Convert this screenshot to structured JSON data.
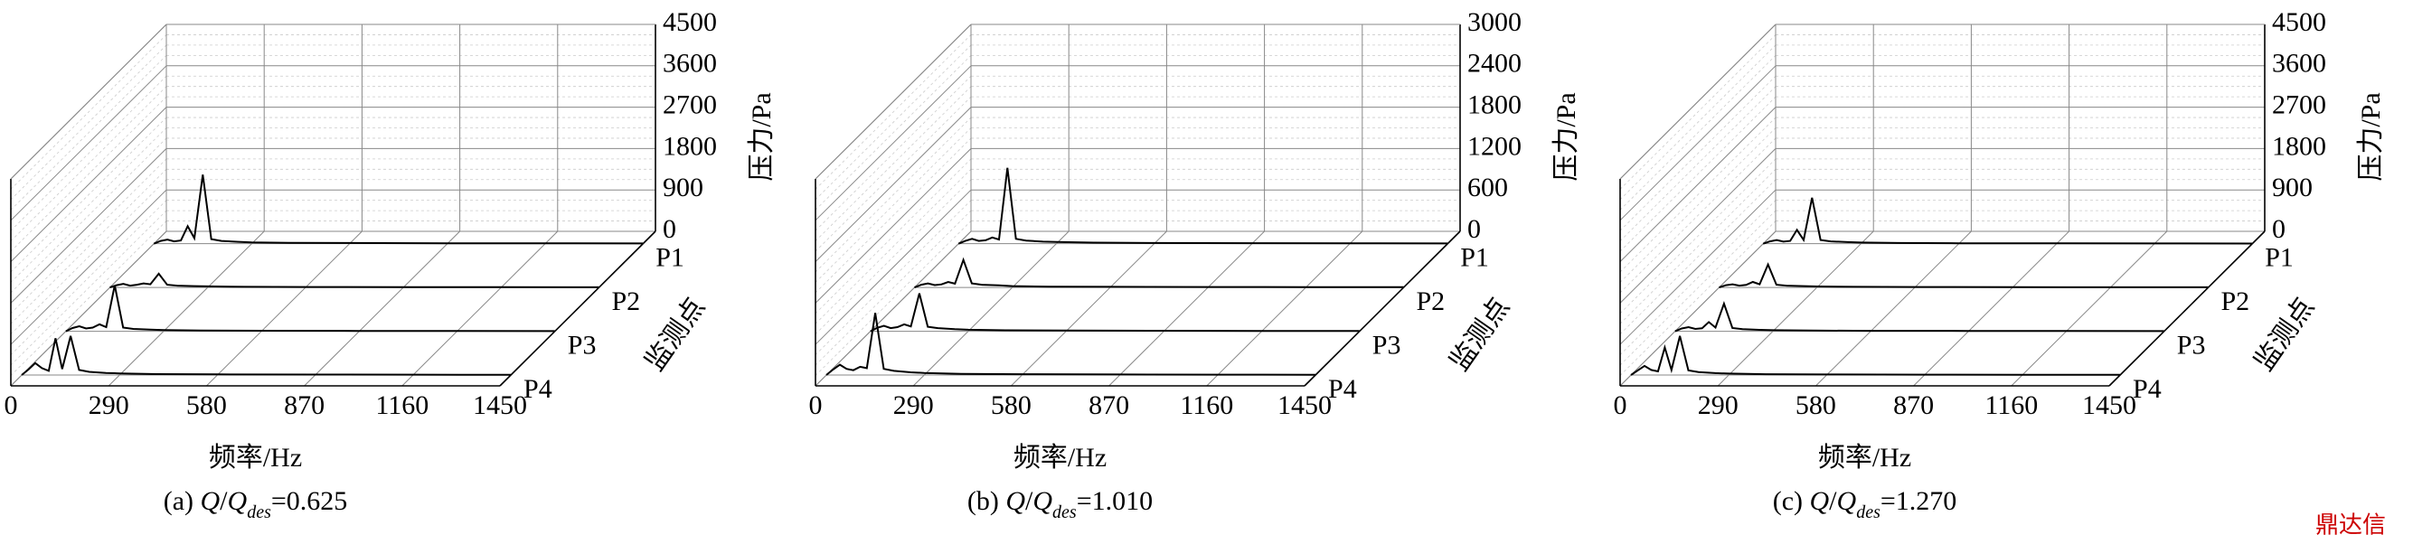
{
  "chart_data": [
    {
      "type": "waterfall",
      "caption": [
        "(a) ",
        "Q",
        "/",
        "Q",
        "des",
        "=0.625"
      ],
      "xlabel": "频率/Hz",
      "ylabel": "压力/Pa",
      "zlabel": "监测点",
      "categories": [
        "P1",
        "P2",
        "P3",
        "P4"
      ],
      "xlim": [
        0,
        1450
      ],
      "xticks": [
        0,
        290,
        580,
        870,
        1160,
        1450
      ],
      "ylim": [
        0,
        4500
      ],
      "yticks": [
        0,
        900,
        1800,
        2700,
        3600,
        4500
      ],
      "x": [
        0,
        20,
        40,
        60,
        80,
        100,
        120,
        145,
        170,
        200,
        250,
        290,
        400,
        580,
        870,
        1160,
        1450
      ],
      "series": [
        {
          "name": "P1",
          "color": "#000000",
          "values": [
            0,
            60,
            90,
            50,
            70,
            380,
            120,
            1500,
            100,
            60,
            40,
            30,
            20,
            15,
            10,
            10,
            5
          ]
        },
        {
          "name": "P2",
          "color": "#000000",
          "values": [
            0,
            50,
            80,
            40,
            60,
            90,
            70,
            300,
            60,
            40,
            30,
            25,
            15,
            10,
            8,
            6,
            5
          ]
        },
        {
          "name": "P3",
          "color": "#000000",
          "values": [
            0,
            70,
            110,
            60,
            80,
            150,
            90,
            1000,
            80,
            50,
            35,
            25,
            15,
            12,
            8,
            6,
            4
          ]
        },
        {
          "name": "P4",
          "color": "#000000",
          "values": [
            0,
            120,
            260,
            150,
            90,
            800,
            130,
            850,
            110,
            70,
            45,
            35,
            20,
            14,
            10,
            8,
            5
          ]
        }
      ]
    },
    {
      "type": "waterfall",
      "caption": [
        "(b) ",
        "Q",
        "/",
        "Q",
        "des",
        "=1.010"
      ],
      "xlabel": "频率/Hz",
      "ylabel": "压力/Pa",
      "zlabel": "监测点",
      "categories": [
        "P1",
        "P2",
        "P3",
        "P4"
      ],
      "xlim": [
        0,
        1450
      ],
      "xticks": [
        0,
        290,
        580,
        870,
        1160,
        1450
      ],
      "ylim": [
        0,
        3000
      ],
      "yticks": [
        0,
        600,
        1200,
        1800,
        2400,
        3000
      ],
      "x": [
        0,
        20,
        40,
        60,
        80,
        100,
        120,
        145,
        170,
        200,
        250,
        290,
        400,
        580,
        870,
        1160,
        1450
      ],
      "series": [
        {
          "name": "P1",
          "color": "#000000",
          "values": [
            0,
            40,
            70,
            40,
            50,
            90,
            60,
            1100,
            70,
            45,
            30,
            25,
            15,
            10,
            8,
            6,
            4
          ]
        },
        {
          "name": "P2",
          "color": "#000000",
          "values": [
            0,
            40,
            60,
            35,
            45,
            80,
            55,
            400,
            60,
            40,
            30,
            20,
            12,
            9,
            7,
            5,
            4
          ]
        },
        {
          "name": "P3",
          "color": "#000000",
          "values": [
            0,
            50,
            80,
            45,
            60,
            100,
            70,
            550,
            65,
            45,
            30,
            22,
            14,
            10,
            7,
            5,
            4
          ]
        },
        {
          "name": "P4",
          "color": "#000000",
          "values": [
            0,
            80,
            150,
            90,
            70,
            120,
            100,
            900,
            90,
            60,
            40,
            30,
            18,
            12,
            8,
            6,
            4
          ]
        }
      ]
    },
    {
      "type": "waterfall",
      "caption": [
        "(c) ",
        "Q",
        "/",
        "Q",
        "des",
        "=1.270"
      ],
      "xlabel": "频率/Hz",
      "ylabel": "压力/Pa",
      "zlabel": "监测点",
      "categories": [
        "P1",
        "P2",
        "P3",
        "P4"
      ],
      "xlim": [
        0,
        1450
      ],
      "xticks": [
        0,
        290,
        580,
        870,
        1160,
        1450
      ],
      "ylim": [
        0,
        4500
      ],
      "yticks": [
        0,
        900,
        1800,
        2700,
        3600,
        4500
      ],
      "x": [
        0,
        20,
        40,
        60,
        80,
        100,
        120,
        145,
        170,
        200,
        250,
        290,
        400,
        580,
        870,
        1160,
        1450
      ],
      "series": [
        {
          "name": "P1",
          "color": "#000000",
          "values": [
            0,
            50,
            80,
            45,
            60,
            300,
            80,
            1000,
            80,
            50,
            35,
            25,
            15,
            10,
            8,
            6,
            4
          ]
        },
        {
          "name": "P2",
          "color": "#000000",
          "values": [
            0,
            50,
            70,
            40,
            55,
            120,
            70,
            500,
            60,
            40,
            30,
            22,
            14,
            10,
            7,
            5,
            4
          ]
        },
        {
          "name": "P3",
          "color": "#000000",
          "values": [
            0,
            60,
            90,
            50,
            65,
            200,
            80,
            600,
            70,
            45,
            32,
            24,
            15,
            10,
            7,
            5,
            4
          ]
        },
        {
          "name": "P4",
          "color": "#000000",
          "values": [
            0,
            100,
            200,
            110,
            80,
            600,
            110,
            850,
            100,
            65,
            42,
            32,
            18,
            12,
            8,
            6,
            4
          ]
        }
      ]
    }
  ],
  "watermark": "鼎达信"
}
